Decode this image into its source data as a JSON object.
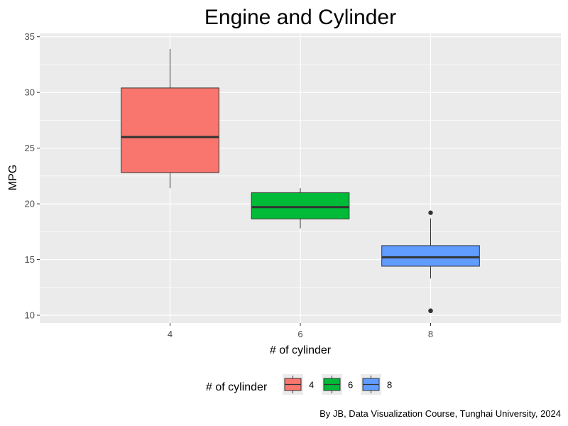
{
  "chart_data": {
    "type": "boxplot",
    "title": "Engine and Cylinder",
    "xlabel": "# of cylinder",
    "ylabel": "MPG",
    "caption": "By JB, Data Visualization Course, Tunghai University, 2024",
    "ylim": [
      9.3,
      35.3
    ],
    "y_ticks": [
      10,
      15,
      20,
      25,
      30,
      35
    ],
    "grid": true,
    "legend": {
      "title": "# of cylinder",
      "position": "bottom"
    },
    "categories": [
      "4",
      "6",
      "8"
    ],
    "boxes": [
      {
        "category": "4",
        "color": "#F8766D",
        "whisker_low": 21.4,
        "q1": 22.8,
        "median": 26.0,
        "q3": 30.4,
        "whisker_high": 33.9,
        "outliers": []
      },
      {
        "category": "6",
        "color": "#00BA38",
        "whisker_low": 17.8,
        "q1": 18.65,
        "median": 19.7,
        "q3": 21.0,
        "whisker_high": 21.4,
        "outliers": []
      },
      {
        "category": "8",
        "color": "#619CFF",
        "whisker_low": 13.3,
        "q1": 14.4,
        "median": 15.2,
        "q3": 16.25,
        "whisker_high": 18.7,
        "outliers": [
          10.4,
          10.4,
          19.2
        ]
      }
    ]
  }
}
